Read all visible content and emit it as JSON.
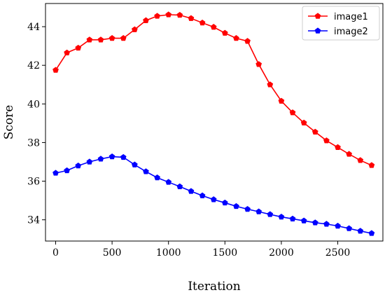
{
  "chart_data": {
    "type": "line",
    "title": "",
    "xlabel": "Iteration",
    "ylabel": "Score",
    "xlim": [
      -90,
      2900
    ],
    "ylim": [
      32.9,
      45.2
    ],
    "xticks": [
      0,
      500,
      1000,
      1500,
      2000,
      2500
    ],
    "yticks": [
      34,
      36,
      38,
      40,
      42,
      44
    ],
    "grid": false,
    "legend_position": "top-right",
    "x": [
      0,
      100,
      200,
      300,
      400,
      500,
      600,
      700,
      800,
      900,
      1000,
      1100,
      1200,
      1300,
      1400,
      1500,
      1600,
      1700,
      1800,
      1900,
      2000,
      2100,
      2200,
      2300,
      2400,
      2500,
      2600,
      2700,
      2800
    ],
    "series": [
      {
        "name": "image1",
        "color": "#ff0000",
        "marker": "pentagon",
        "values": [
          41.75,
          42.65,
          42.9,
          43.32,
          43.32,
          43.4,
          43.4,
          43.85,
          44.32,
          44.55,
          44.62,
          44.6,
          44.43,
          44.2,
          43.98,
          43.67,
          43.4,
          43.25,
          42.05,
          41.0,
          40.15,
          39.55,
          39.02,
          38.55,
          38.1,
          37.75,
          37.4,
          37.08,
          36.82
        ]
      },
      {
        "name": "image2",
        "color": "#0000ff",
        "marker": "pentagon",
        "values": [
          36.42,
          36.55,
          36.8,
          37.0,
          37.15,
          37.27,
          37.24,
          36.85,
          36.5,
          36.18,
          35.95,
          35.72,
          35.48,
          35.25,
          35.05,
          34.88,
          34.7,
          34.55,
          34.42,
          34.28,
          34.15,
          34.05,
          33.95,
          33.85,
          33.78,
          33.68,
          33.55,
          33.42,
          33.3
        ]
      }
    ]
  }
}
